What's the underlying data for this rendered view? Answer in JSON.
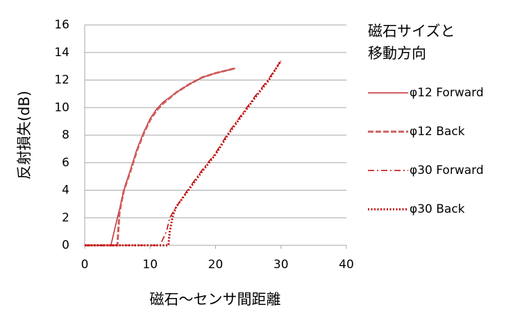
{
  "chart_data": {
    "type": "line",
    "x_label": "磁石～センサ間距離",
    "y_label": "反射損失(dB)",
    "legend_title": [
      "磁石サイズと",
      "移動方向"
    ],
    "xlim": [
      0,
      40
    ],
    "xticks": [
      0,
      10,
      20,
      30,
      40
    ],
    "ylim": [
      0,
      16
    ],
    "yticks": [
      0,
      2,
      4,
      6,
      8,
      10,
      12,
      14,
      16
    ],
    "grid": true,
    "legend": "right",
    "series": [
      {
        "name": "φ12 Forward",
        "color": "#c0282d",
        "style": "solid",
        "x": [
          0,
          4,
          4.5,
          5,
          5.5,
          6,
          7,
          8,
          9,
          10,
          11,
          12,
          14,
          16,
          18,
          20,
          23
        ],
        "values": [
          0,
          0,
          1,
          2,
          3,
          4,
          5.5,
          7,
          8.2,
          9.2,
          9.9,
          10.4,
          11.1,
          11.7,
          12.2,
          12.5,
          12.85
        ]
      },
      {
        "name": "φ12 Back",
        "color": "#cf5b5b",
        "style": "dashed",
        "x": [
          0,
          5,
          5.3,
          5.6,
          6,
          7,
          8,
          9,
          10,
          11,
          12,
          14,
          16,
          18,
          20,
          23
        ],
        "values": [
          0,
          0,
          2.3,
          3.1,
          4,
          5.4,
          6.9,
          8.1,
          9.1,
          9.8,
          10.3,
          11.1,
          11.7,
          12.2,
          12.5,
          12.85
        ]
      },
      {
        "name": "φ30 Forward",
        "color": "#c00000",
        "style": "dashdot",
        "x": [
          0,
          11.5,
          12,
          12.5,
          13,
          14,
          16,
          18,
          20,
          22,
          24,
          26,
          28,
          30
        ],
        "values": [
          0,
          0,
          0.5,
          1,
          2,
          2.8,
          4.2,
          5.5,
          6.7,
          8.2,
          9.5,
          10.8,
          12,
          13.4
        ]
      },
      {
        "name": "φ30 Back",
        "color": "#c00000",
        "style": "dotted",
        "x": [
          0,
          12.8,
          13,
          13.5,
          14,
          16,
          18,
          20,
          22,
          24,
          26,
          28,
          30
        ],
        "values": [
          0,
          0,
          1,
          2.2,
          2.8,
          4.1,
          5.4,
          6.6,
          8.1,
          9.4,
          10.7,
          11.9,
          13.4
        ]
      }
    ]
  }
}
